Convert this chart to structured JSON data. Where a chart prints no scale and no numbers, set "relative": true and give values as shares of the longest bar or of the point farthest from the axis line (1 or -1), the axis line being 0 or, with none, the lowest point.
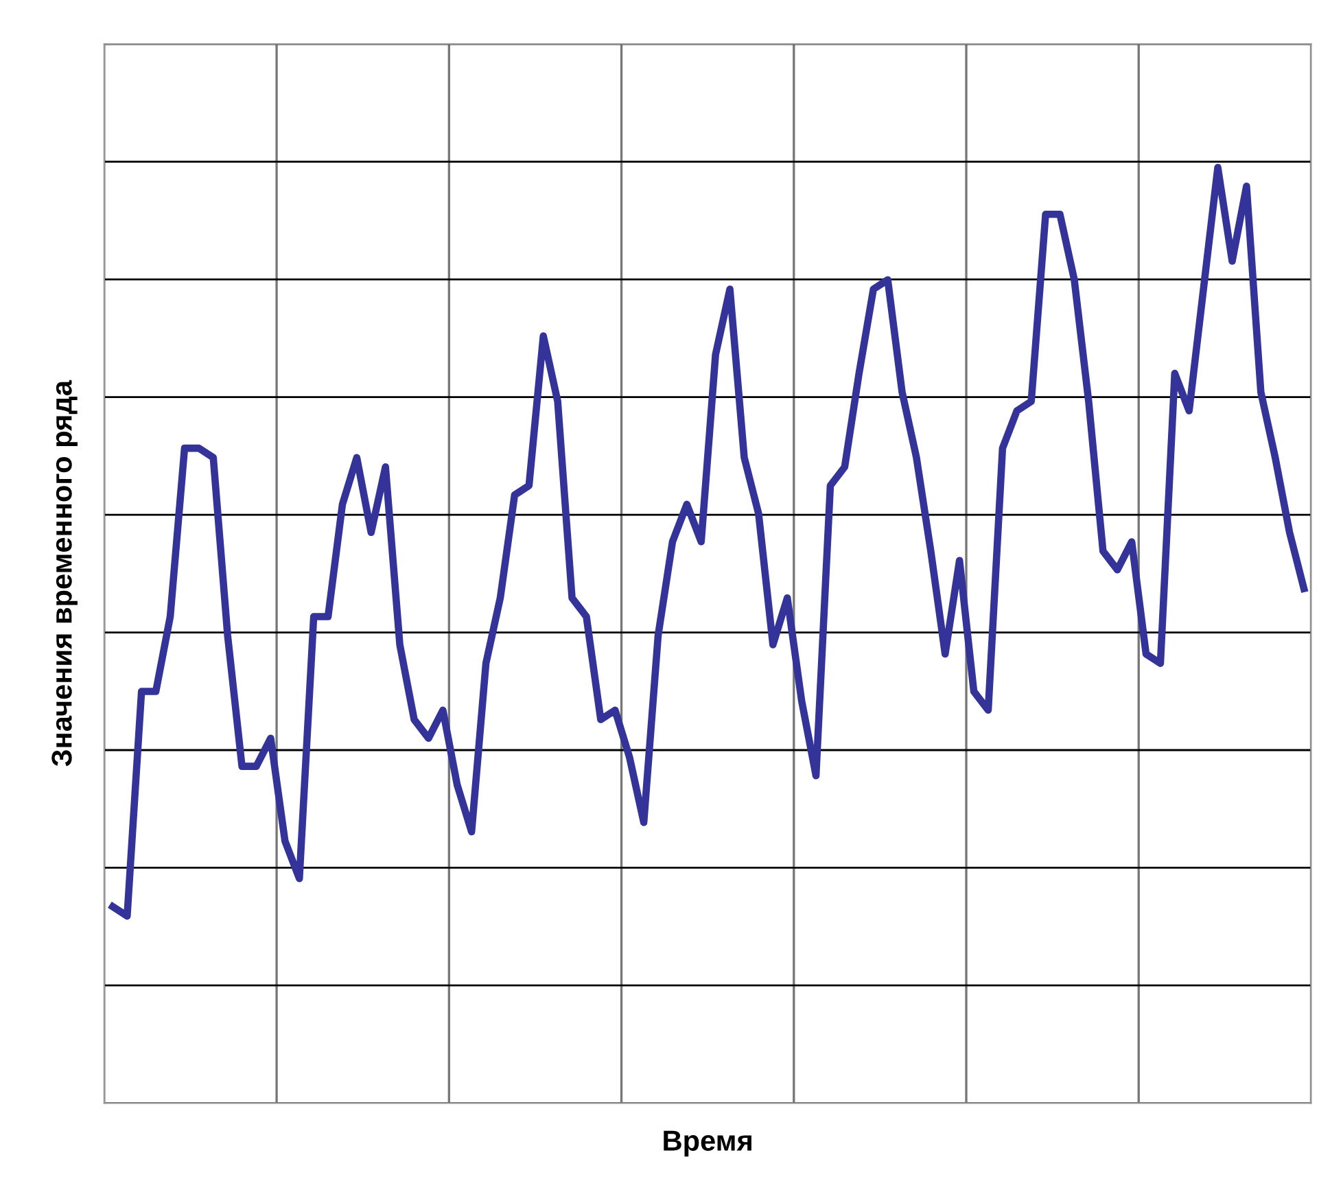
{
  "chart_data": {
    "type": "line",
    "xlabel": "Время",
    "ylabel": "Значения временного ряда",
    "relative": true,
    "grid": true,
    "tick_labels": false,
    "marker": "none",
    "line_style": "solid",
    "categories": [
      null,
      null,
      null,
      null,
      null,
      null,
      null,
      null,
      null,
      null,
      null,
      null,
      null,
      null,
      null,
      null,
      null,
      null,
      null,
      null,
      null,
      null,
      null,
      null,
      null,
      null,
      null,
      null,
      null,
      null,
      null,
      null,
      null,
      null,
      null,
      null,
      null,
      null,
      null,
      null,
      null,
      null,
      null,
      null,
      null,
      null,
      null,
      null,
      null,
      null,
      null,
      null,
      null,
      null,
      null,
      null,
      null,
      null,
      null,
      null,
      null,
      null,
      null,
      null,
      null,
      null,
      null,
      null,
      null,
      null,
      null,
      null,
      null,
      null,
      null,
      null,
      null,
      null,
      null,
      null,
      null,
      null,
      null,
      null
    ],
    "series": [
      {
        "color": "#333399",
        "values": [
          0.21,
          0.2,
          0.44,
          0.44,
          0.52,
          0.7,
          0.7,
          0.69,
          0.5,
          0.36,
          0.36,
          0.39,
          0.28,
          0.24,
          0.52,
          0.52,
          0.64,
          0.69,
          0.61,
          0.68,
          0.49,
          0.41,
          0.39,
          0.42,
          0.34,
          0.29,
          0.47,
          0.54,
          0.65,
          0.66,
          0.82,
          0.75,
          0.54,
          0.52,
          0.41,
          0.42,
          0.37,
          0.3,
          0.5,
          0.6,
          0.64,
          0.6,
          0.8,
          0.87,
          0.69,
          0.63,
          0.49,
          0.54,
          0.43,
          0.35,
          0.66,
          0.68,
          0.78,
          0.87,
          0.88,
          0.76,
          0.69,
          0.59,
          0.48,
          0.58,
          0.44,
          0.42,
          0.7,
          0.74,
          0.75,
          0.95,
          0.95,
          0.88,
          0.75,
          0.59,
          0.57,
          0.6,
          0.48,
          0.47,
          0.78,
          0.74,
          0.87,
          1.0,
          0.9,
          0.98,
          0.76,
          0.69,
          0.61,
          0.55
        ]
      }
    ]
  }
}
